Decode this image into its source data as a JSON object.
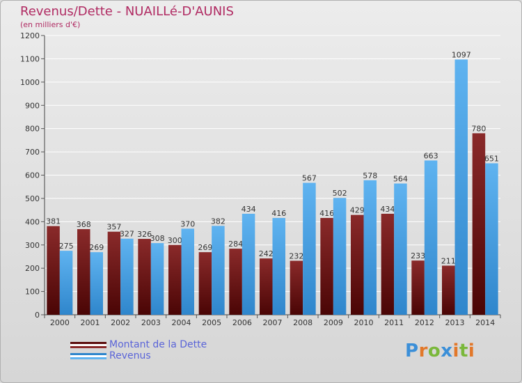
{
  "title": "Revenus/Dette - NUAILLé-D'AUNIS",
  "subtitle": "(en milliers d'€)",
  "chart_data": {
    "type": "bar",
    "categories": [
      "2000",
      "2001",
      "2002",
      "2003",
      "2004",
      "2005",
      "2006",
      "2007",
      "2008",
      "2009",
      "2010",
      "2011",
      "2012",
      "2013",
      "2014"
    ],
    "series": [
      {
        "name": "Montant de la Dette",
        "color": "#7a1a1a",
        "values": [
          381,
          368,
          357,
          326,
          300,
          269,
          284,
          242,
          232,
          416,
          429,
          434,
          233,
          211,
          780
        ]
      },
      {
        "name": "Revenus",
        "color": "#4aa3e6",
        "values": [
          275,
          269,
          327,
          308,
          370,
          382,
          434,
          416,
          567,
          502,
          578,
          564,
          663,
          1097,
          651
        ]
      }
    ],
    "ylim": [
      0,
      1200
    ],
    "yticks": [
      0,
      100,
      200,
      300,
      400,
      500,
      600,
      700,
      800,
      900,
      1000,
      1100,
      1200
    ],
    "grid": true,
    "legend_position": "bottom-left"
  },
  "logo": {
    "letters": [
      "P",
      "r",
      "o",
      "x",
      "i",
      "t",
      "i"
    ],
    "colors": [
      "#3b8fd8",
      "#e2782a",
      "#7ab83b",
      "#3b8fd8",
      "#e2782a",
      "#7ab83b",
      "#e2782a"
    ]
  }
}
